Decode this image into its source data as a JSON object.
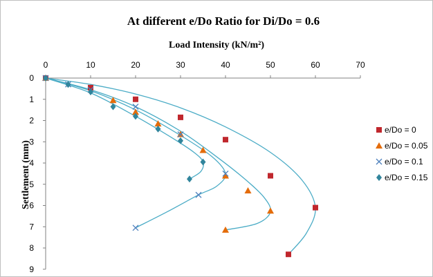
{
  "chart_data": {
    "type": "scatter",
    "title": "At different e/Do Ratio for Di/Do = 0.6",
    "xlabel": "Load Intensity (kN/m²)",
    "ylabel": "Settlement (mm)",
    "xlim": [
      0,
      70
    ],
    "ylim": [
      0,
      9
    ],
    "y_inverted": true,
    "x_axis_position": "top",
    "xticks": [
      "0",
      "10",
      "20",
      "30",
      "40",
      "50",
      "60",
      "70"
    ],
    "yticks": [
      "0",
      "1",
      "2",
      "3",
      "4",
      "5",
      "6",
      "7",
      "8",
      "9"
    ],
    "grid": false,
    "legend_position": "right",
    "trend_color": "#4bacc6",
    "series": [
      {
        "name": "e/Do = 0",
        "marker": "square",
        "color": "#c0272d",
        "x": [
          0,
          10,
          20,
          30,
          40,
          50,
          60,
          54
        ],
        "y": [
          0,
          0.45,
          1.0,
          1.85,
          2.9,
          4.6,
          6.1,
          8.3
        ],
        "trend": [
          [
            0,
            0
          ],
          [
            10,
            0.3
          ],
          [
            20,
            0.75
          ],
          [
            30,
            1.4
          ],
          [
            40,
            2.3
          ],
          [
            50,
            3.5
          ],
          [
            57,
            4.8
          ],
          [
            60,
            6.1
          ],
          [
            58,
            7.3
          ],
          [
            54,
            8.3
          ]
        ]
      },
      {
        "name": "e/Do = 0.05",
        "marker": "triangle",
        "color": "#e46c0a",
        "x": [
          0,
          15,
          20,
          25,
          30,
          35,
          40,
          45,
          50,
          40
        ],
        "y": [
          0,
          1.05,
          1.6,
          2.15,
          2.65,
          3.4,
          4.6,
          5.3,
          6.25,
          7.15
        ],
        "trend": [
          [
            0,
            0
          ],
          [
            10,
            0.55
          ],
          [
            20,
            1.35
          ],
          [
            30,
            2.5
          ],
          [
            38,
            3.7
          ],
          [
            44,
            4.7
          ],
          [
            48.5,
            5.6
          ],
          [
            50,
            6.3
          ],
          [
            47,
            6.85
          ],
          [
            40,
            7.15
          ]
        ]
      },
      {
        "name": "e/Do = 0.1",
        "marker": "cross",
        "color": "#4f81bd",
        "x": [
          0,
          5,
          10,
          20,
          30,
          40,
          34,
          20
        ],
        "y": [
          0,
          0.3,
          0.55,
          1.35,
          2.65,
          4.5,
          5.5,
          7.05
        ],
        "trend": [
          [
            0,
            0
          ],
          [
            10,
            0.6
          ],
          [
            20,
            1.5
          ],
          [
            30,
            2.7
          ],
          [
            37,
            3.7
          ],
          [
            40,
            4.5
          ],
          [
            38,
            5.1
          ],
          [
            34,
            5.5
          ],
          [
            27,
            6.3
          ],
          [
            20,
            7.05
          ]
        ]
      },
      {
        "name": "e/Do = 0.15",
        "marker": "diamond",
        "color": "#31859c",
        "x": [
          0,
          5,
          10,
          15,
          20,
          25,
          30,
          35,
          32
        ],
        "y": [
          0,
          0.3,
          0.65,
          1.35,
          1.8,
          2.4,
          2.95,
          3.95,
          4.75
        ],
        "trend": [
          [
            0,
            0
          ],
          [
            10,
            0.7
          ],
          [
            20,
            1.8
          ],
          [
            28,
            2.8
          ],
          [
            33,
            3.5
          ],
          [
            35,
            3.95
          ],
          [
            34.5,
            4.4
          ],
          [
            32,
            4.75
          ]
        ]
      }
    ]
  }
}
